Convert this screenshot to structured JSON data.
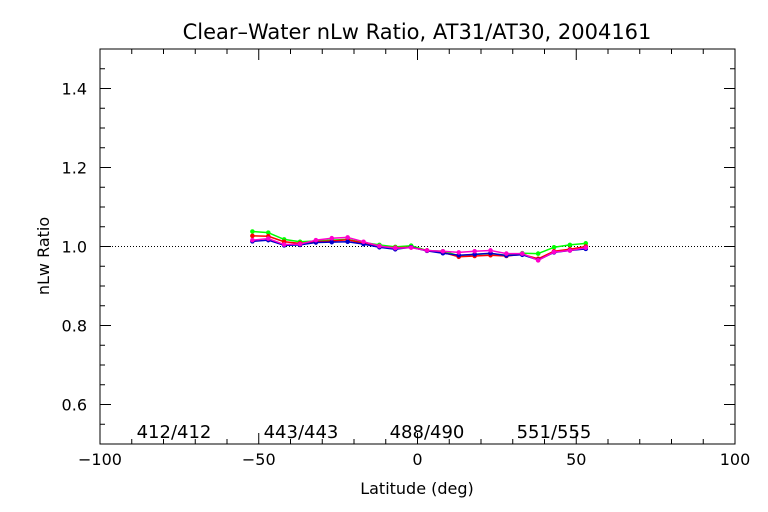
{
  "chart_data": {
    "type": "line",
    "title": "Clear–Water nLw Ratio, AT31/AT30, 2004161",
    "xlabel": "Latitude (deg)",
    "ylabel": "nLw Ratio",
    "xlim": [
      -100,
      100
    ],
    "ylim": [
      0.5,
      1.5
    ],
    "x_ticks": [
      -100,
      -50,
      0,
      50,
      100
    ],
    "x_tick_labels": [
      "−100",
      "−50",
      "0",
      "50",
      "100"
    ],
    "y_ticks": [
      0.6,
      0.8,
      1.0,
      1.2,
      1.4
    ],
    "y_tick_labels": [
      "0.6",
      "0.8",
      "1.0",
      "1.2",
      "1.4"
    ],
    "reference_line": {
      "y": 1.0,
      "style": "dotted"
    },
    "legend_position": "bottom",
    "x": [
      -52,
      -47,
      -42,
      -37,
      -32,
      -27,
      -22,
      -17,
      -12,
      -7,
      -2,
      3,
      8,
      13,
      18,
      23,
      28,
      33,
      38,
      43,
      48,
      53
    ],
    "series": [
      {
        "name": "412/412",
        "color": "#00ff00",
        "values": [
          1.038,
          1.035,
          1.018,
          1.012,
          1.014,
          1.016,
          1.018,
          1.01,
          1.004,
          0.999,
          1.002,
          0.99,
          0.988,
          0.977,
          0.98,
          0.982,
          0.978,
          0.983,
          0.982,
          0.998,
          1.004,
          1.008
        ]
      },
      {
        "name": "443/443",
        "color": "#ff0000",
        "values": [
          1.027,
          1.026,
          1.012,
          1.008,
          1.012,
          1.014,
          1.017,
          1.008,
          1.0,
          0.997,
          0.998,
          0.99,
          0.985,
          0.974,
          0.976,
          0.978,
          0.976,
          0.98,
          0.969,
          0.988,
          0.993,
          1.0
        ]
      },
      {
        "name": "488/490",
        "color": "#0000cc",
        "values": [
          1.013,
          1.016,
          1.003,
          1.004,
          1.01,
          1.011,
          1.012,
          1.006,
          0.998,
          0.993,
          0.998,
          0.989,
          0.983,
          0.978,
          0.98,
          0.983,
          0.977,
          0.979,
          0.966,
          0.985,
          0.99,
          0.994
        ]
      },
      {
        "name": "551/555",
        "color": "#ff00cc",
        "values": [
          1.016,
          1.02,
          1.005,
          1.006,
          1.016,
          1.021,
          1.023,
          1.012,
          1.001,
          0.996,
          0.997,
          0.99,
          0.988,
          0.985,
          0.988,
          0.99,
          0.982,
          0.982,
          0.965,
          0.986,
          0.99,
          0.997
        ]
      }
    ]
  }
}
